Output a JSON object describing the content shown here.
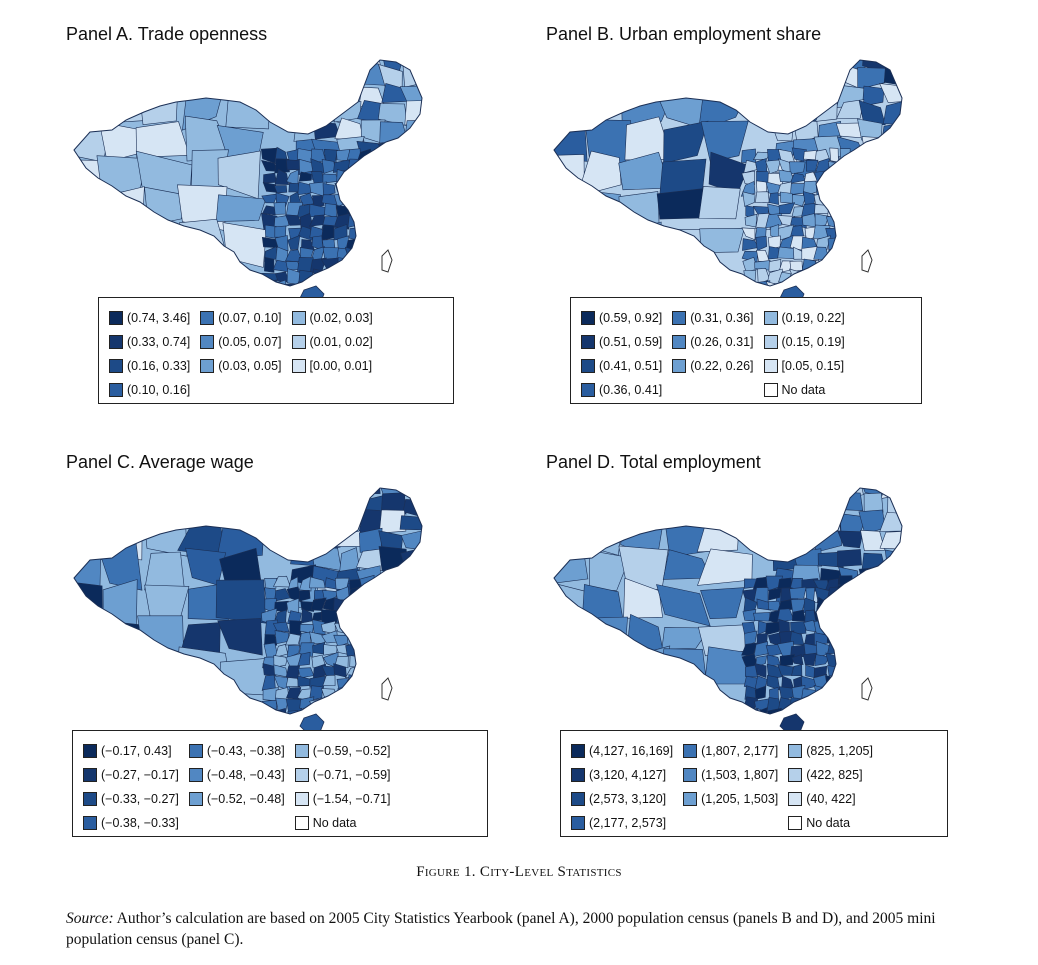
{
  "panels": [
    {
      "title": "Panel A. Trade openness",
      "legend": [
        {
          "label": "(0.74, 3.46]",
          "color": "#0b2a5b"
        },
        {
          "label": "(0.33, 0.74]",
          "color": "#15366d"
        },
        {
          "label": "(0.16, 0.33]",
          "color": "#1d4a87"
        },
        {
          "label": "(0.10, 0.16]",
          "color": "#2a5d9f"
        },
        {
          "label": "(0.07, 0.10]",
          "color": "#3b72b2"
        },
        {
          "label": "(0.05, 0.07]",
          "color": "#5187c2"
        },
        {
          "label": "(0.03, 0.05]",
          "color": "#6d9fd1"
        },
        {
          "label": "(0.02, 0.03]",
          "color": "#92badf"
        },
        {
          "label": "(0.01, 0.02]",
          "color": "#b5d0ea"
        },
        {
          "label": "[0.00, 0.01]",
          "color": "#d6e5f4"
        }
      ]
    },
    {
      "title": "Panel B. Urban employment share",
      "legend": [
        {
          "label": "(0.59, 0.92]",
          "color": "#0b2a5b"
        },
        {
          "label": "(0.51, 0.59]",
          "color": "#15366d"
        },
        {
          "label": "(0.41, 0.51]",
          "color": "#1d4a87"
        },
        {
          "label": "(0.36, 0.41]",
          "color": "#2a5d9f"
        },
        {
          "label": "(0.31, 0.36]",
          "color": "#3b72b2"
        },
        {
          "label": "(0.26, 0.31]",
          "color": "#5187c2"
        },
        {
          "label": "(0.22, 0.26]",
          "color": "#6d9fd1"
        },
        {
          "label": "(0.19, 0.22]",
          "color": "#92badf"
        },
        {
          "label": "(0.15, 0.19]",
          "color": "#b5d0ea"
        },
        {
          "label": "[0.05, 0.15]",
          "color": "#d6e5f4"
        },
        {
          "label": "No data",
          "color": "#ffffff"
        }
      ]
    },
    {
      "title": "Panel C. Average wage",
      "legend": [
        {
          "label": "(−0.17, 0.43]",
          "color": "#0b2a5b"
        },
        {
          "label": "(−0.27, −0.17]",
          "color": "#15366d"
        },
        {
          "label": "(−0.33, −0.27]",
          "color": "#1d4a87"
        },
        {
          "label": "(−0.38, −0.33]",
          "color": "#2a5d9f"
        },
        {
          "label": "(−0.43, −0.38]",
          "color": "#3b72b2"
        },
        {
          "label": "(−0.48, −0.43]",
          "color": "#5187c2"
        },
        {
          "label": "(−0.52, −0.48]",
          "color": "#6d9fd1"
        },
        {
          "label": "(−0.59, −0.52]",
          "color": "#92badf"
        },
        {
          "label": "(−0.71, −0.59]",
          "color": "#b5d0ea"
        },
        {
          "label": "(−1.54, −0.71]",
          "color": "#d6e5f4"
        },
        {
          "label": "No data",
          "color": "#ffffff"
        }
      ]
    },
    {
      "title": "Panel D. Total employment",
      "legend": [
        {
          "label": "(4,127, 16,169]",
          "color": "#0b2a5b"
        },
        {
          "label": "(3,120, 4,127]",
          "color": "#15366d"
        },
        {
          "label": "(2,573, 3,120]",
          "color": "#1d4a87"
        },
        {
          "label": "(2,177, 2,573]",
          "color": "#2a5d9f"
        },
        {
          "label": "(1,807, 2,177]",
          "color": "#3b72b2"
        },
        {
          "label": "(1,503, 1,807]",
          "color": "#5187c2"
        },
        {
          "label": "(1,205, 1,503]",
          "color": "#6d9fd1"
        },
        {
          "label": "(825, 1,205]",
          "color": "#92badf"
        },
        {
          "label": "(422, 825]",
          "color": "#b5d0ea"
        },
        {
          "label": "(40, 422]",
          "color": "#d6e5f4"
        },
        {
          "label": "No data",
          "color": "#ffffff"
        }
      ]
    }
  ],
  "caption": {
    "prefix": "Figure 1.",
    "text": "City-Level Statistics"
  },
  "source": {
    "label": "Source:",
    "text": "Author’s calculation are based on 2005 City Statistics Yearbook (panel A), 2000 population census (panels B and D), and 2005 mini population census (panel C)."
  }
}
